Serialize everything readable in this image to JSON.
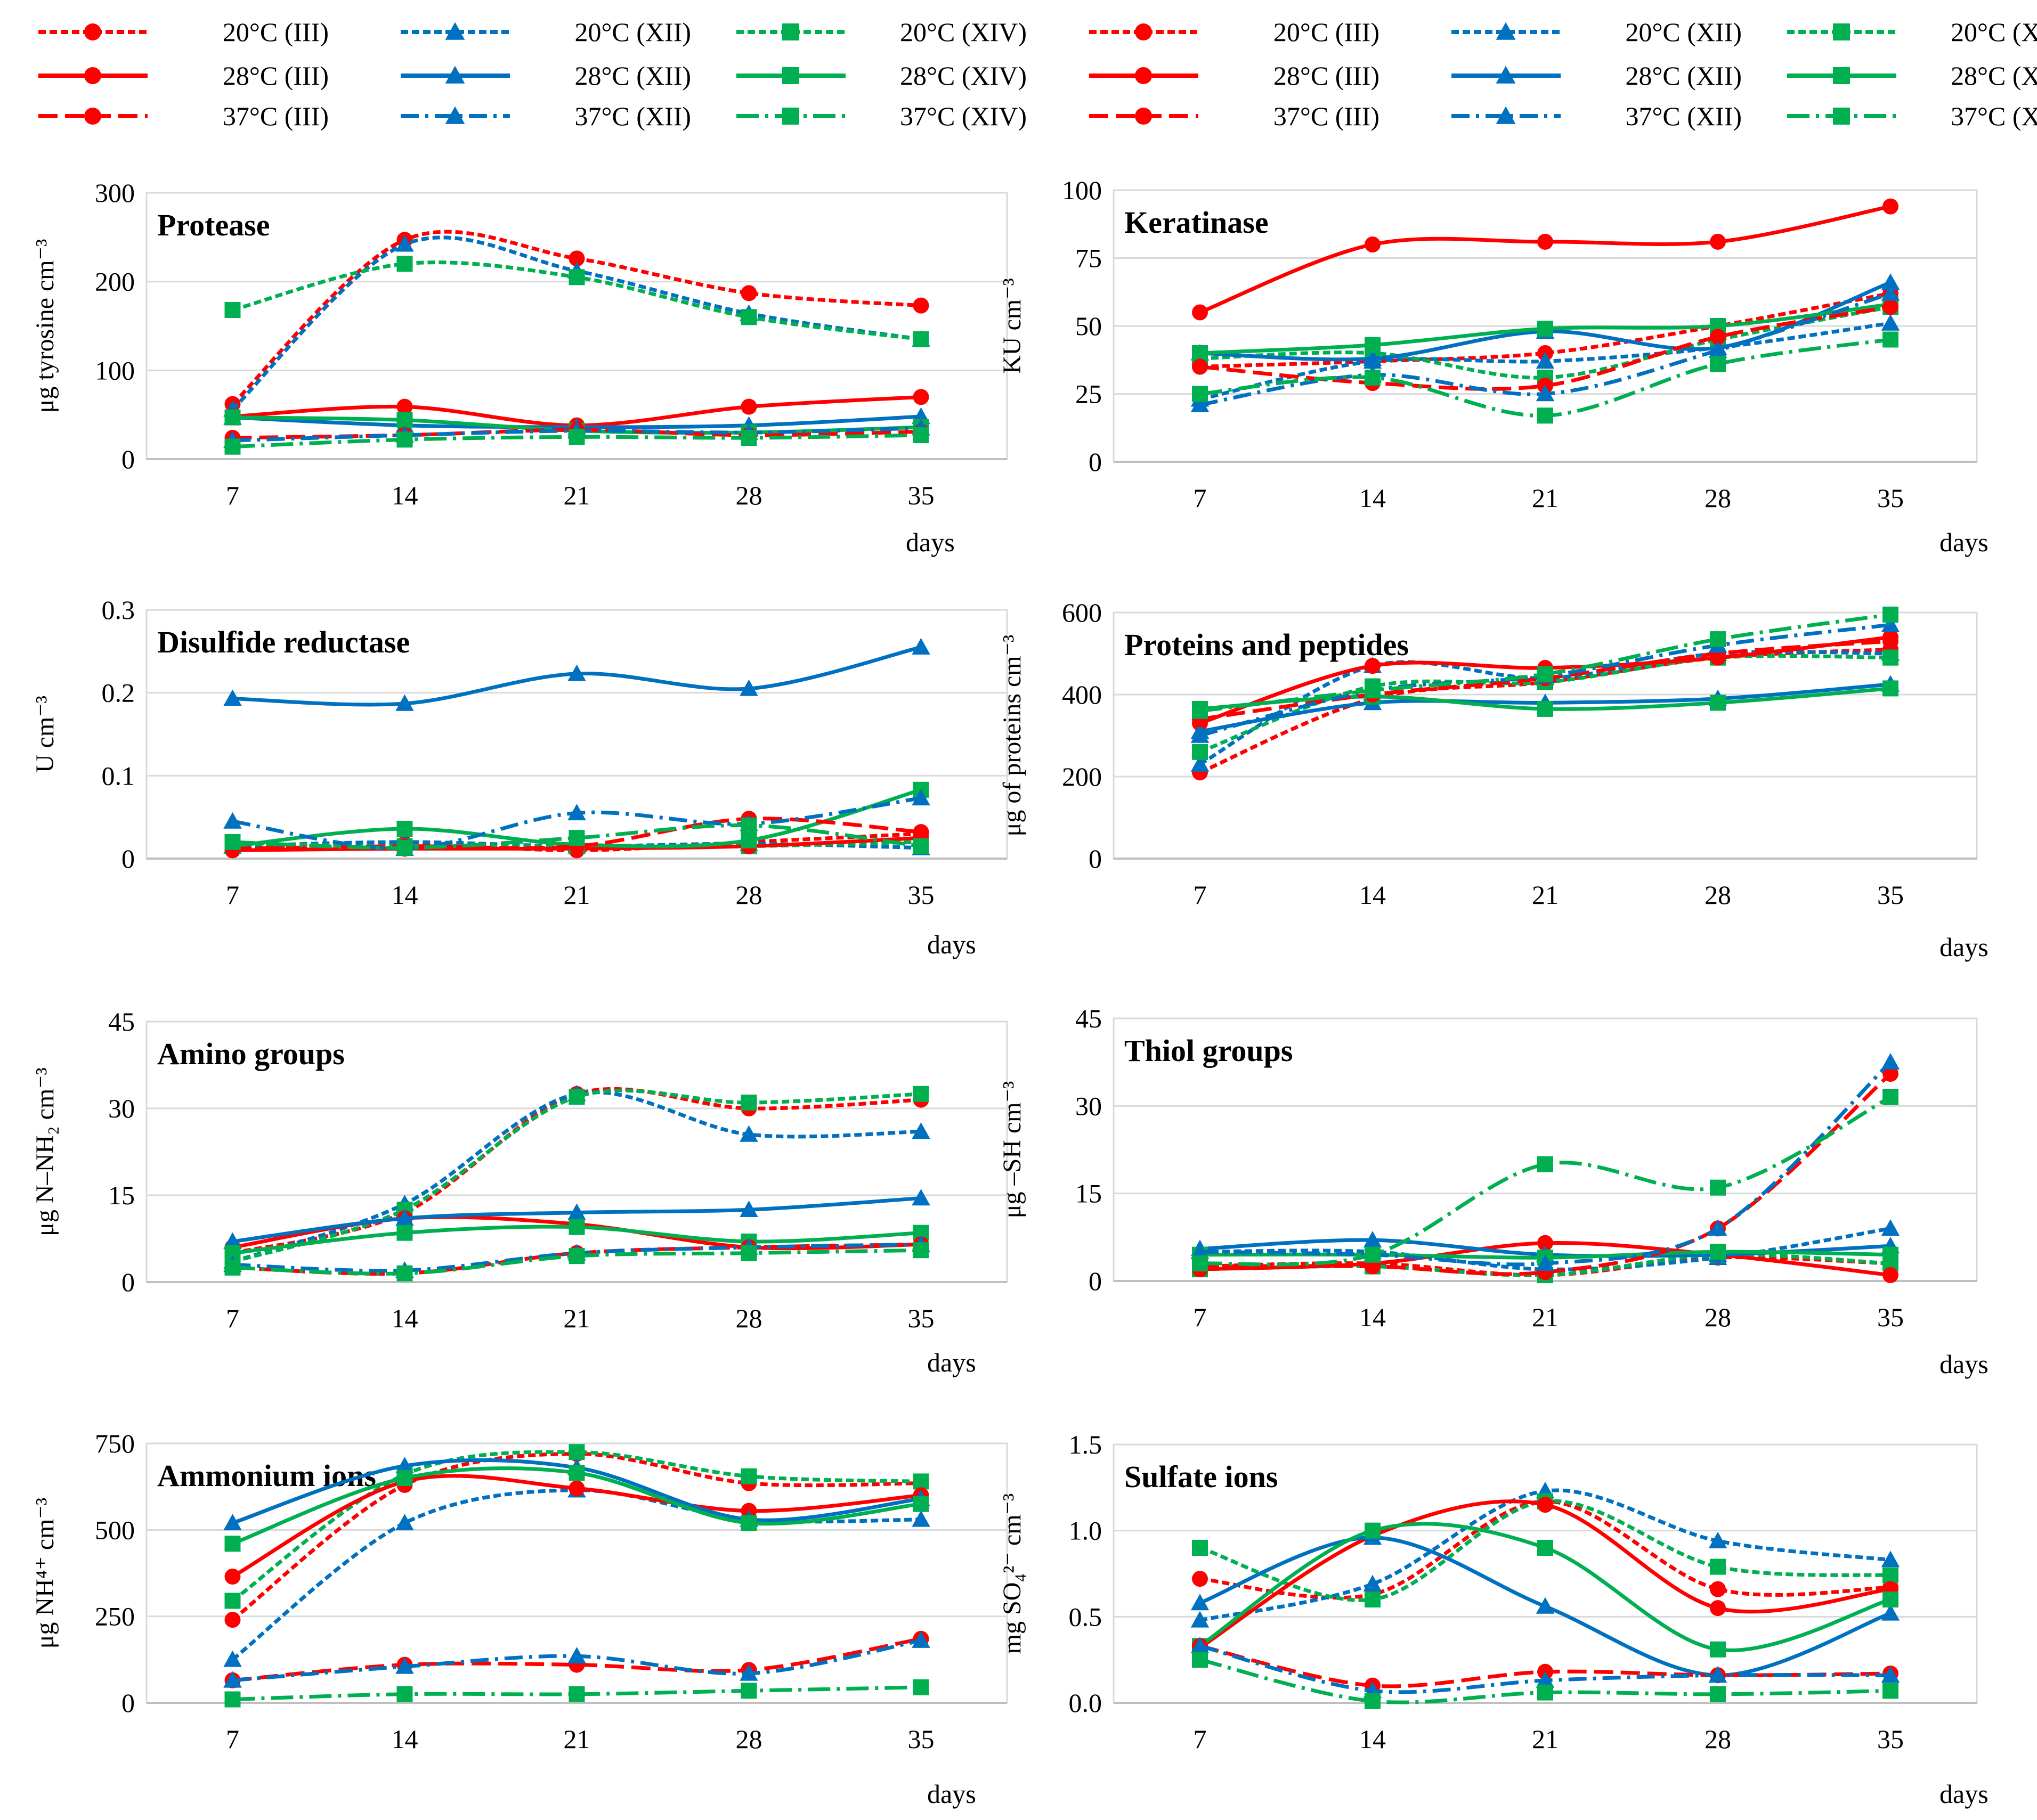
{
  "legend": {
    "entries": [
      {
        "series": "s20_III",
        "label": "20°C (III)"
      },
      {
        "series": "s20_XII",
        "label": "20°C (XII)"
      },
      {
        "series": "s20_XIV",
        "label": "20°C (XIV)"
      },
      {
        "series": "s28_III",
        "label": "28°C (III)"
      },
      {
        "series": "s28_XII",
        "label": "28°C (XII)"
      },
      {
        "series": "s28_XIV",
        "label": "28°C (XIV)"
      },
      {
        "series": "s37_III",
        "label": "37°C (III)"
      },
      {
        "series": "s37_XII",
        "label": "37°C (XII)"
      },
      {
        "series": "s37_XIV",
        "label": "37°C (XIV)"
      }
    ]
  },
  "series_style": {
    "s20_III": {
      "color": "#ff0000",
      "marker": "circle",
      "dash": "short-dash"
    },
    "s20_XII": {
      "color": "#0070c0",
      "marker": "triangle",
      "dash": "short-dash"
    },
    "s20_XIV": {
      "color": "#00b050",
      "marker": "square",
      "dash": "short-dash"
    },
    "s28_III": {
      "color": "#ff0000",
      "marker": "circle",
      "dash": "solid"
    },
    "s28_XII": {
      "color": "#0070c0",
      "marker": "triangle",
      "dash": "solid"
    },
    "s28_XIV": {
      "color": "#00b050",
      "marker": "square",
      "dash": "solid"
    },
    "s37_III": {
      "color": "#ff0000",
      "marker": "circle",
      "dash": "long-dash"
    },
    "s37_XII": {
      "color": "#0070c0",
      "marker": "triangle",
      "dash": "dash-dot"
    },
    "s37_XIV": {
      "color": "#00b050",
      "marker": "square",
      "dash": "long-dash-dot"
    }
  },
  "chart_data": [
    {
      "id": "protease",
      "type": "line",
      "title": "Protease",
      "ylabel": "μg tyrosine cm⁻³",
      "xlabel": "days",
      "categories": [
        "7",
        "14",
        "21",
        "28",
        "35"
      ],
      "ylim": [
        0,
        300
      ],
      "yticks": [
        "0",
        "100",
        "200",
        "300"
      ],
      "series": [
        {
          "key": "s20_III",
          "name": "20°C (III)",
          "values": [
            62,
            247,
            226,
            187,
            173
          ]
        },
        {
          "key": "s20_XII",
          "name": "20°C (XII)",
          "values": [
            56,
            242,
            212,
            164,
            135
          ]
        },
        {
          "key": "s20_XIV",
          "name": "20°C (XIV)",
          "values": [
            168,
            220,
            205,
            160,
            135
          ]
        },
        {
          "key": "s28_III",
          "name": "28°C (III)",
          "values": [
            48,
            59,
            38,
            59,
            70
          ]
        },
        {
          "key": "s28_XII",
          "name": "28°C (XII)",
          "values": [
            47,
            38,
            36,
            38,
            48
          ]
        },
        {
          "key": "s28_XIV",
          "name": "28°C (XIV)",
          "values": [
            47,
            44,
            32,
            30,
            36
          ]
        },
        {
          "key": "s37_III",
          "name": "37°C (III)",
          "values": [
            24,
            27,
            33,
            27,
            31
          ]
        },
        {
          "key": "s37_XII",
          "name": "37°C (XII)",
          "values": [
            21,
            27,
            32,
            30,
            35
          ]
        },
        {
          "key": "s37_XIV",
          "name": "37°C (XIV)",
          "values": [
            14,
            22,
            25,
            24,
            27
          ]
        }
      ]
    },
    {
      "id": "keratinase",
      "type": "line",
      "title": "Keratinase",
      "ylabel": "KU cm⁻³",
      "xlabel": "days",
      "categories": [
        "7",
        "14",
        "21",
        "28",
        "35"
      ],
      "ylim": [
        0,
        100
      ],
      "yticks": [
        "0",
        "25",
        "50",
        "75",
        "100"
      ],
      "series": [
        {
          "key": "s20_III",
          "name": "20°C (III)",
          "values": [
            35,
            37,
            40,
            50,
            62
          ]
        },
        {
          "key": "s20_XII",
          "name": "20°C (XII)",
          "values": [
            23,
            37,
            37,
            42,
            51
          ]
        },
        {
          "key": "s20_XIV",
          "name": "20°C (XIV)",
          "values": [
            38,
            40,
            31,
            45,
            57
          ]
        },
        {
          "key": "s28_III",
          "name": "28°C (III)",
          "values": [
            55,
            80,
            81,
            81,
            94
          ]
        },
        {
          "key": "s28_XII",
          "name": "28°C (XII)",
          "values": [
            40,
            38,
            48,
            42,
            66
          ]
        },
        {
          "key": "s28_XIV",
          "name": "28°C (XIV)",
          "values": [
            40,
            43,
            49,
            50,
            58
          ]
        },
        {
          "key": "s37_III",
          "name": "37°C (III)",
          "values": [
            35,
            29,
            28,
            46,
            57
          ]
        },
        {
          "key": "s37_XII",
          "name": "37°C (XII)",
          "values": [
            21,
            32,
            25,
            41,
            62
          ]
        },
        {
          "key": "s37_XIV",
          "name": "37°C (XIV)",
          "values": [
            25,
            31,
            17,
            36,
            45
          ]
        }
      ]
    },
    {
      "id": "disulfide-reductase",
      "type": "line",
      "title": "Disulfide reductase",
      "ylabel": "U cm⁻³",
      "xlabel": "days",
      "categories": [
        "7",
        "14",
        "21",
        "28",
        "35"
      ],
      "ylim": [
        0,
        0.3
      ],
      "yticks": [
        "0",
        "0.1",
        "0.2",
        "0.3"
      ],
      "series": [
        {
          "key": "s20_III",
          "name": "20°C (III)",
          "values": [
            0.012,
            0.018,
            0.01,
            0.02,
            0.03
          ]
        },
        {
          "key": "s20_XII",
          "name": "20°C (XII)",
          "values": [
            0.015,
            0.02,
            0.015,
            0.018,
            0.013
          ]
        },
        {
          "key": "s20_XIV",
          "name": "20°C (XIV)",
          "values": [
            0.018,
            0.015,
            0.015,
            0.015,
            0.02
          ]
        },
        {
          "key": "s28_III",
          "name": "28°C (III)",
          "values": [
            0.01,
            0.012,
            0.012,
            0.015,
            0.025
          ]
        },
        {
          "key": "s28_XII",
          "name": "28°C (XII)",
          "values": [
            0.193,
            0.187,
            0.223,
            0.205,
            0.255
          ]
        },
        {
          "key": "s28_XIV",
          "name": "28°C (XIV)",
          "values": [
            0.015,
            0.036,
            0.017,
            0.022,
            0.083
          ]
        },
        {
          "key": "s37_III",
          "name": "37°C (III)",
          "values": [
            0.012,
            0.015,
            0.015,
            0.048,
            0.032
          ]
        },
        {
          "key": "s37_XII",
          "name": "37°C (XII)",
          "values": [
            0.045,
            0.012,
            0.055,
            0.042,
            0.073
          ]
        },
        {
          "key": "s37_XIV",
          "name": "37°C (XIV)",
          "values": [
            0.02,
            0.013,
            0.025,
            0.04,
            0.015
          ]
        }
      ]
    },
    {
      "id": "proteins-peptides",
      "type": "line",
      "title": "Proteins and peptides",
      "ylabel": "μg of proteins cm⁻³",
      "xlabel": "days",
      "categories": [
        "7",
        "14",
        "21",
        "28",
        "35"
      ],
      "ylim": [
        0,
        600
      ],
      "yticks": [
        "0",
        "200",
        "400",
        "600"
      ],
      "series": [
        {
          "key": "s20_III",
          "name": "20°C (III)",
          "values": [
            210,
            390,
            430,
            490,
            510
          ]
        },
        {
          "key": "s20_XII",
          "name": "20°C (XII)",
          "values": [
            230,
            470,
            440,
            500,
            500
          ]
        },
        {
          "key": "s20_XIV",
          "name": "20°C (XIV)",
          "values": [
            260,
            420,
            430,
            490,
            490
          ]
        },
        {
          "key": "s28_III",
          "name": "28°C (III)",
          "values": [
            330,
            470,
            465,
            490,
            540
          ]
        },
        {
          "key": "s28_XII",
          "name": "28°C (XII)",
          "values": [
            310,
            380,
            380,
            390,
            425
          ]
        },
        {
          "key": "s28_XIV",
          "name": "28°C (XIV)",
          "values": [
            365,
            395,
            365,
            380,
            415
          ]
        },
        {
          "key": "s37_III",
          "name": "37°C (III)",
          "values": [
            340,
            400,
            440,
            500,
            530
          ]
        },
        {
          "key": "s37_XII",
          "name": "37°C (XII)",
          "values": [
            300,
            410,
            445,
            520,
            570
          ]
        },
        {
          "key": "s37_XIV",
          "name": "37°C (XIV)",
          "values": [
            360,
            410,
            450,
            535,
            595
          ]
        }
      ]
    },
    {
      "id": "amino-groups",
      "type": "line",
      "title": "Amino groups",
      "ylabel": "μg N–NH₂ cm⁻³",
      "xlabel": "days",
      "categories": [
        "7",
        "14",
        "21",
        "28",
        "35"
      ],
      "ylim": [
        0,
        45
      ],
      "yticks": [
        "0",
        "15",
        "30",
        "45"
      ],
      "series": [
        {
          "key": "s20_III",
          "name": "20°C (III)",
          "values": [
            5,
            12,
            32.5,
            30,
            31.5
          ]
        },
        {
          "key": "s20_XII",
          "name": "20°C (XII)",
          "values": [
            3.5,
            13.5,
            32.5,
            25.5,
            26
          ]
        },
        {
          "key": "s20_XIV",
          "name": "20°C (XIV)",
          "values": [
            3.5,
            12.5,
            32,
            31,
            32.5
          ]
        },
        {
          "key": "s28_III",
          "name": "28°C (III)",
          "values": [
            6,
            11,
            10,
            6,
            6.5
          ]
        },
        {
          "key": "s28_XII",
          "name": "28°C (XII)",
          "values": [
            7,
            11,
            12,
            12.5,
            14.5
          ]
        },
        {
          "key": "s28_XIV",
          "name": "28°C (XIV)",
          "values": [
            5,
            8.5,
            9.5,
            7,
            8.5
          ]
        },
        {
          "key": "s37_III",
          "name": "37°C (III)",
          "values": [
            2.5,
            1.5,
            5,
            6,
            6.5
          ]
        },
        {
          "key": "s37_XII",
          "name": "37°C (XII)",
          "values": [
            3,
            2,
            5,
            6,
            6.5
          ]
        },
        {
          "key": "s37_XIV",
          "name": "37°C (XIV)",
          "values": [
            2.5,
            1.5,
            4.5,
            5,
            5.5
          ]
        }
      ]
    },
    {
      "id": "thiol-groups",
      "type": "line",
      "title": "Thiol groups",
      "ylabel": "μg –SH cm⁻³",
      "xlabel": "days",
      "categories": [
        "7",
        "14",
        "21",
        "28",
        "35"
      ],
      "ylim": [
        0,
        45
      ],
      "yticks": [
        "0",
        "15",
        "30",
        "45"
      ],
      "series": [
        {
          "key": "s20_III",
          "name": "20°C (III)",
          "values": [
            2.5,
            3,
            1,
            4,
            3
          ]
        },
        {
          "key": "s20_XII",
          "name": "20°C (XII)",
          "values": [
            5,
            5,
            2,
            4,
            9
          ]
        },
        {
          "key": "s20_XIV",
          "name": "20°C (XIV)",
          "values": [
            2,
            2.5,
            1,
            4.5,
            3
          ]
        },
        {
          "key": "s28_III",
          "name": "28°C (III)",
          "values": [
            2,
            3,
            6.5,
            4.5,
            1
          ]
        },
        {
          "key": "s28_XII",
          "name": "28°C (XII)",
          "values": [
            5.5,
            7,
            4.5,
            4.5,
            6
          ]
        },
        {
          "key": "s28_XIV",
          "name": "28°C (XIV)",
          "values": [
            4.5,
            4.5,
            4,
            5,
            4.5
          ]
        },
        {
          "key": "s37_III",
          "name": "37°C (III)",
          "values": [
            2.5,
            2.5,
            1.5,
            9,
            35.5
          ]
        },
        {
          "key": "s37_XII",
          "name": "37°C (XII)",
          "values": [
            5,
            4.5,
            3,
            9,
            37.5
          ]
        },
        {
          "key": "s37_XIV",
          "name": "37°C (XIV)",
          "values": [
            3,
            4.5,
            20,
            16,
            31.5
          ]
        }
      ]
    },
    {
      "id": "ammonium-ions",
      "type": "line",
      "title": "Ammonium ions",
      "ylabel": "μg NH⁴⁺ cm⁻³",
      "xlabel": "days",
      "categories": [
        "7",
        "14",
        "21",
        "28",
        "35"
      ],
      "ylim": [
        0,
        750
      ],
      "yticks": [
        "0",
        "250",
        "500",
        "750"
      ],
      "series": [
        {
          "key": "s20_III",
          "name": "20°C (III)",
          "values": [
            240,
            630,
            720,
            635,
            635
          ]
        },
        {
          "key": "s20_XII",
          "name": "20°C (XII)",
          "values": [
            125,
            520,
            615,
            530,
            530
          ]
        },
        {
          "key": "s20_XIV",
          "name": "20°C (XIV)",
          "values": [
            295,
            660,
            725,
            655,
            640
          ]
        },
        {
          "key": "s28_III",
          "name": "28°C (III)",
          "values": [
            365,
            640,
            620,
            555,
            600
          ]
        },
        {
          "key": "s28_XII",
          "name": "28°C (XII)",
          "values": [
            520,
            685,
            680,
            530,
            590
          ]
        },
        {
          "key": "s28_XIV",
          "name": "28°C (XIV)",
          "values": [
            460,
            650,
            665,
            520,
            575
          ]
        },
        {
          "key": "s37_III",
          "name": "37°C (III)",
          "values": [
            65,
            110,
            110,
            95,
            185
          ]
        },
        {
          "key": "s37_XII",
          "name": "37°C (XII)",
          "values": [
            65,
            105,
            135,
            85,
            180
          ]
        },
        {
          "key": "s37_XIV",
          "name": "37°C (XIV)",
          "values": [
            10,
            25,
            25,
            35,
            45
          ]
        }
      ]
    },
    {
      "id": "sulfate-ions",
      "type": "line",
      "title": "Sulfate ions",
      "ylabel": "mg SO₄²⁻ cm⁻³",
      "xlabel": "days",
      "categories": [
        "7",
        "14",
        "21",
        "28",
        "35"
      ],
      "ylim": [
        0,
        1.5
      ],
      "yticks": [
        "0.0",
        "0.5",
        "1.0",
        "1.5"
      ],
      "series": [
        {
          "key": "s20_III",
          "name": "20°C (III)",
          "values": [
            0.72,
            0.63,
            1.17,
            0.66,
            0.67
          ]
        },
        {
          "key": "s20_XII",
          "name": "20°C (XII)",
          "values": [
            0.48,
            0.69,
            1.23,
            0.94,
            0.83
          ]
        },
        {
          "key": "s20_XIV",
          "name": "20°C (XIV)",
          "values": [
            0.9,
            0.6,
            1.17,
            0.79,
            0.74
          ]
        },
        {
          "key": "s28_III",
          "name": "28°C (III)",
          "values": [
            0.32,
            0.97,
            1.15,
            0.55,
            0.66
          ]
        },
        {
          "key": "s28_XII",
          "name": "28°C (XII)",
          "values": [
            0.58,
            0.96,
            0.56,
            0.16,
            0.52
          ]
        },
        {
          "key": "s28_XIV",
          "name": "28°C (XIV)",
          "values": [
            0.33,
            1.0,
            0.9,
            0.31,
            0.6
          ]
        },
        {
          "key": "s37_III",
          "name": "37°C (III)",
          "values": [
            0.33,
            0.1,
            0.18,
            0.16,
            0.17
          ]
        },
        {
          "key": "s37_XII",
          "name": "37°C (XII)",
          "values": [
            0.33,
            0.07,
            0.13,
            0.16,
            0.16
          ]
        },
        {
          "key": "s37_XIV",
          "name": "37°C (XIV)",
          "values": [
            0.25,
            0.01,
            0.06,
            0.05,
            0.07
          ]
        }
      ]
    }
  ]
}
